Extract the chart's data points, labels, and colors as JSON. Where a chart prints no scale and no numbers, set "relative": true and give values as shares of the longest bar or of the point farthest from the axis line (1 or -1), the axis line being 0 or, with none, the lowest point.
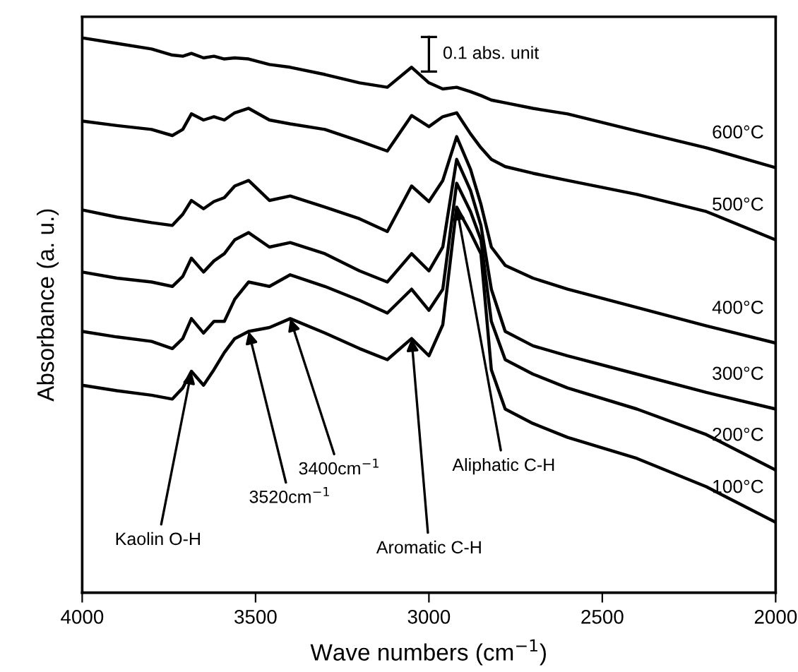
{
  "chart_data": {
    "type": "line",
    "relative": true,
    "xlabel": "Wave numbers (cm$^{−1}$)",
    "ylabel": "Absorbance (a. u.)",
    "x": [
      4000,
      3900,
      3800,
      3740,
      3710,
      3685,
      3650,
      3620,
      3590,
      3560,
      3520,
      3460,
      3400,
      3300,
      3200,
      3120,
      3050,
      3000,
      2960,
      2920,
      2880,
      2850,
      2820,
      2780,
      2700,
      2600,
      2400,
      2200,
      2000
    ],
    "xlim": [
      4000,
      2000
    ],
    "xticks": [
      4000,
      3500,
      3000,
      2500,
      2000
    ],
    "grid": false,
    "legend": false,
    "marker": "none",
    "line_style": "solid",
    "series": [
      {
        "name": "600°C",
        "color": "#000000",
        "values": [
          1.0,
          0.99,
          0.98,
          0.969,
          0.967,
          0.972,
          0.964,
          0.967,
          0.962,
          0.964,
          0.962,
          0.952,
          0.947,
          0.934,
          0.919,
          0.911,
          0.947,
          0.919,
          0.908,
          0.911,
          0.903,
          0.896,
          0.888,
          0.883,
          0.873,
          0.863,
          0.832,
          0.802,
          0.766
        ]
      },
      {
        "name": "500°C",
        "color": "#000000",
        "values": [
          0.85,
          0.842,
          0.835,
          0.824,
          0.835,
          0.863,
          0.852,
          0.858,
          0.852,
          0.865,
          0.873,
          0.852,
          0.845,
          0.835,
          0.814,
          0.796,
          0.86,
          0.84,
          0.858,
          0.865,
          0.827,
          0.802,
          0.781,
          0.768,
          0.756,
          0.743,
          0.718,
          0.687,
          0.636
        ]
      },
      {
        "name": "400°C",
        "color": "#000000",
        "values": [
          0.69,
          0.677,
          0.667,
          0.662,
          0.682,
          0.707,
          0.692,
          0.705,
          0.712,
          0.733,
          0.743,
          0.707,
          0.715,
          0.695,
          0.674,
          0.651,
          0.733,
          0.705,
          0.743,
          0.822,
          0.763,
          0.7,
          0.623,
          0.59,
          0.567,
          0.547,
          0.514,
          0.481,
          0.45
        ]
      },
      {
        "name": "300°C",
        "color": "#000000",
        "values": [
          0.578,
          0.567,
          0.56,
          0.552,
          0.57,
          0.603,
          0.578,
          0.598,
          0.611,
          0.636,
          0.649,
          0.623,
          0.631,
          0.611,
          0.58,
          0.56,
          0.611,
          0.58,
          0.623,
          0.781,
          0.725,
          0.662,
          0.547,
          0.471,
          0.445,
          0.427,
          0.394,
          0.361,
          0.331
        ]
      },
      {
        "name": "200°C",
        "color": "#000000",
        "values": [
          0.471,
          0.461,
          0.453,
          0.44,
          0.458,
          0.494,
          0.468,
          0.489,
          0.489,
          0.529,
          0.56,
          0.552,
          0.573,
          0.552,
          0.527,
          0.504,
          0.547,
          0.509,
          0.547,
          0.738,
          0.687,
          0.636,
          0.489,
          0.42,
          0.394,
          0.369,
          0.331,
          0.285,
          0.221
        ]
      },
      {
        "name": "100°C",
        "color": "#000000",
        "values": [
          0.374,
          0.364,
          0.356,
          0.349,
          0.369,
          0.399,
          0.374,
          0.402,
          0.433,
          0.458,
          0.471,
          0.478,
          0.494,
          0.468,
          0.44,
          0.42,
          0.458,
          0.427,
          0.483,
          0.695,
          0.649,
          0.611,
          0.402,
          0.331,
          0.305,
          0.28,
          0.242,
          0.191,
          0.127
        ]
      }
    ],
    "annotations": [
      {
        "text": "Kaolin O-H",
        "x": 3685,
        "y": 0.399
      },
      {
        "text": "3520cm$^{−1}$",
        "x": 3520,
        "y": 0.471
      },
      {
        "text": "3400cm$^{−1}$",
        "x": 3400,
        "y": 0.494
      },
      {
        "text": "Aromatic C-H",
        "x": 3050,
        "y": 0.458
      },
      {
        "text": "Aliphatic C-H",
        "x": 2920,
        "y": 0.695
      },
      "0.1 abs. unit"
    ]
  }
}
